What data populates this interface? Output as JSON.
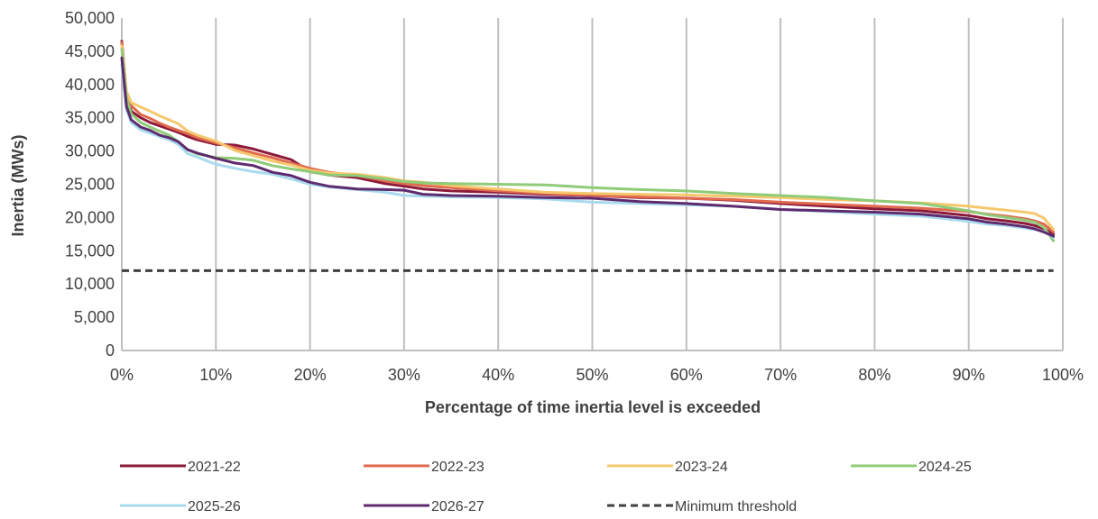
{
  "chart_data": {
    "type": "line",
    "title": "",
    "xlabel": "Percentage of time inertia level is exceeded",
    "ylabel": "Inertia (MWs)",
    "xlim": [
      0,
      100
    ],
    "ylim": [
      0,
      50000
    ],
    "x_ticks": [
      "0%",
      "10%",
      "20%",
      "30%",
      "40%",
      "50%",
      "60%",
      "70%",
      "80%",
      "90%",
      "100%"
    ],
    "y_ticks": [
      "0",
      "5,000",
      "10,000",
      "15,000",
      "20,000",
      "25,000",
      "30,000",
      "35,000",
      "40,000",
      "45,000",
      "50,000"
    ],
    "grid": "vertical",
    "legend_position": "bottom",
    "x": [
      0,
      0.5,
      1,
      2,
      3,
      4,
      5,
      6,
      7,
      8,
      10,
      12,
      14,
      16,
      18,
      20,
      22,
      25,
      28,
      30,
      32,
      35,
      40,
      45,
      50,
      55,
      60,
      65,
      70,
      75,
      80,
      85,
      90,
      92,
      94,
      96,
      97,
      98,
      99
    ],
    "series": [
      {
        "name": "2021-22",
        "color": "#8B1A3A",
        "dash": false,
        "values": [
          46500,
          38500,
          36000,
          35000,
          34300,
          33800,
          33300,
          32800,
          32200,
          31700,
          31000,
          30900,
          30300,
          29500,
          28700,
          26900,
          26400,
          26000,
          25100,
          24700,
          24300,
          24000,
          23800,
          23500,
          23300,
          23000,
          22900,
          22600,
          22100,
          21700,
          21300,
          21000,
          20300,
          19800,
          19500,
          19100,
          18800,
          18300,
          17500
        ]
      },
      {
        "name": "2022-23",
        "color": "#E0694E",
        "dash": false,
        "values": [
          46300,
          38700,
          36800,
          35500,
          34900,
          34200,
          33600,
          33100,
          32600,
          32000,
          31200,
          30500,
          29700,
          29000,
          28200,
          27400,
          26800,
          26300,
          25500,
          25100,
          24800,
          24500,
          24000,
          23600,
          23300,
          23100,
          22900,
          22700,
          22300,
          22000,
          21700,
          21400,
          20900,
          20500,
          20200,
          19800,
          19500,
          19000,
          17800
        ]
      },
      {
        "name": "2023-24",
        "color": "#F5C86E",
        "dash": false,
        "values": [
          45800,
          39000,
          37300,
          36600,
          36000,
          35300,
          34700,
          34100,
          33000,
          32400,
          31500,
          30100,
          29300,
          28500,
          27900,
          27100,
          26700,
          26500,
          26000,
          25500,
          25300,
          24800,
          24300,
          23800,
          23600,
          23500,
          23400,
          23200,
          23000,
          22700,
          22500,
          22200,
          21700,
          21400,
          21100,
          20800,
          20600,
          19900,
          18200
        ]
      },
      {
        "name": "2024-25",
        "color": "#8FCB78",
        "dash": false,
        "values": [
          45300,
          38000,
          35600,
          34300,
          33600,
          33000,
          32400,
          31400,
          30200,
          29600,
          29000,
          28900,
          28600,
          27800,
          27300,
          26900,
          26400,
          26300,
          25800,
          25400,
          25200,
          25100,
          25000,
          24900,
          24500,
          24200,
          24000,
          23600,
          23300,
          23000,
          22500,
          22100,
          21000,
          20400,
          20000,
          19600,
          19300,
          18500,
          16500
        ]
      },
      {
        "name": "2025-26",
        "color": "#A9DAEE",
        "dash": false,
        "values": [
          43000,
          36200,
          34300,
          33200,
          32700,
          32200,
          31700,
          31000,
          29600,
          29100,
          28000,
          27400,
          26900,
          26500,
          25800,
          25000,
          24600,
          24200,
          23800,
          23300,
          23200,
          23100,
          23000,
          22800,
          22300,
          22100,
          21900,
          21700,
          21200,
          20900,
          20500,
          20200,
          19400,
          19000,
          18800,
          18400,
          18200,
          17900,
          17000
        ]
      },
      {
        "name": "2026-27",
        "color": "#5E2B6E",
        "dash": false,
        "values": [
          44000,
          36700,
          34700,
          33600,
          33100,
          32400,
          32000,
          31400,
          30200,
          29700,
          28900,
          28200,
          27800,
          26800,
          26300,
          25300,
          24700,
          24300,
          24200,
          24100,
          23500,
          23300,
          23200,
          23000,
          22900,
          22400,
          22100,
          21700,
          21200,
          21000,
          20800,
          20500,
          19800,
          19300,
          19000,
          18600,
          18300,
          17800,
          17200
        ]
      },
      {
        "name": "Minimum threshold",
        "color": "#404040",
        "dash": true,
        "values": [
          12000,
          12000,
          12000,
          12000,
          12000,
          12000,
          12000,
          12000,
          12000,
          12000,
          12000,
          12000,
          12000,
          12000,
          12000,
          12000,
          12000,
          12000,
          12000,
          12000,
          12000,
          12000,
          12000,
          12000,
          12000,
          12000,
          12000,
          12000,
          12000,
          12000,
          12000,
          12000,
          12000,
          12000,
          12000,
          12000,
          12000,
          12000,
          12000
        ]
      }
    ]
  }
}
